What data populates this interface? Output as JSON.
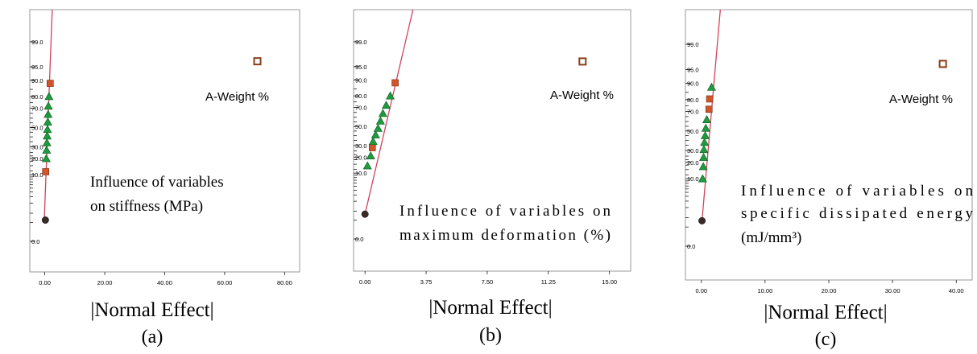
{
  "chart_data": [
    {
      "type": "scatter",
      "xlabel": "|Normal Effect|",
      "panel_label": "(a)",
      "annotation_lines": [
        "Influence of variables",
        "on stiffness (MPa)"
      ],
      "xlim": [
        -5,
        85
      ],
      "xticks": [
        "0.00",
        "20.00",
        "40.00",
        "60.00",
        "80.00"
      ],
      "yticks": [
        "0.0",
        "10.0",
        "20.0",
        "30.0",
        "50.0",
        "70.0",
        "80.0",
        "90.0",
        "95.0",
        "99.0"
      ],
      "point_label": "A-Weight %",
      "points": [
        {
          "x": 0.2,
          "p": 0.6,
          "marker": "circle"
        },
        {
          "x": 0.3,
          "p": 11.5,
          "marker": "square-red"
        },
        {
          "x": 0.5,
          "p": 20,
          "marker": "triangle"
        },
        {
          "x": 0.6,
          "p": 27,
          "marker": "triangle"
        },
        {
          "x": 0.7,
          "p": 34,
          "marker": "triangle"
        },
        {
          "x": 0.8,
          "p": 41,
          "marker": "triangle"
        },
        {
          "x": 0.9,
          "p": 48,
          "marker": "triangle"
        },
        {
          "x": 1.0,
          "p": 56,
          "marker": "triangle"
        },
        {
          "x": 1.1,
          "p": 64,
          "marker": "triangle"
        },
        {
          "x": 1.2,
          "p": 72,
          "marker": "triangle"
        },
        {
          "x": 1.4,
          "p": 80,
          "marker": "triangle"
        },
        {
          "x": 1.8,
          "p": 88.5,
          "marker": "square-red"
        },
        {
          "x": 70.9,
          "p": 96.4,
          "marker": "square-open"
        }
      ],
      "fit_line": {
        "x": [
          -0.2,
          2.8
        ],
        "p": [
          0.5,
          99.995
        ]
      }
    },
    {
      "type": "scatter",
      "xlabel": "|Normal Effect|",
      "panel_label": "(b)",
      "annotation_lines": [
        "Influence of variables on",
        "maximum deformation (%)"
      ],
      "xlim": [
        -0.7,
        16.3
      ],
      "xticks": [
        "0.00",
        "3.75",
        "7.50",
        "11.25",
        "15.00"
      ],
      "yticks": [
        "0.0",
        "10.0",
        "20.0",
        "30.0",
        "50.0",
        "70.0",
        "80.0",
        "90.0",
        "95.0",
        "99.0"
      ],
      "point_label": "A-Weight %",
      "points": [
        {
          "x": 0.0,
          "p": 0.8,
          "marker": "circle"
        },
        {
          "x": 0.15,
          "p": 14,
          "marker": "triangle"
        },
        {
          "x": 0.35,
          "p": 21,
          "marker": "triangle"
        },
        {
          "x": 0.45,
          "p": 28,
          "marker": "square-red"
        },
        {
          "x": 0.5,
          "p": 34,
          "marker": "triangle"
        },
        {
          "x": 0.65,
          "p": 41,
          "marker": "triangle"
        },
        {
          "x": 0.8,
          "p": 48,
          "marker": "triangle"
        },
        {
          "x": 0.95,
          "p": 56,
          "marker": "triangle"
        },
        {
          "x": 1.1,
          "p": 64,
          "marker": "triangle"
        },
        {
          "x": 1.3,
          "p": 72,
          "marker": "triangle"
        },
        {
          "x": 1.55,
          "p": 80,
          "marker": "triangle"
        },
        {
          "x": 1.85,
          "p": 88.5,
          "marker": "square-red"
        },
        {
          "x": 13.35,
          "p": 96.3,
          "marker": "square-open"
        }
      ],
      "fit_line": {
        "x": [
          0.0,
          3.3
        ],
        "p": [
          0.8,
          99.995
        ]
      }
    },
    {
      "type": "scatter",
      "xlabel": "|Normal Effect|",
      "panel_label": "(c)",
      "annotation_lines": [
        "Influence of variables on",
        "specific dissipated energy",
        "(mJ/mm³)"
      ],
      "xlim": [
        -2.5,
        42.5
      ],
      "xticks": [
        "0.00",
        "10.00",
        "20.00",
        "30.00",
        "40.00"
      ],
      "yticks": [
        "0.0",
        "10.0",
        "20.0",
        "30.0",
        "50.0",
        "70.0",
        "80.0",
        "90.0",
        "95.0",
        "99.0"
      ],
      "point_label": "A-Weight %",
      "points": [
        {
          "x": 0.1,
          "p": 0.8,
          "marker": "circle"
        },
        {
          "x": 0.2,
          "p": 10,
          "marker": "triangle"
        },
        {
          "x": 0.3,
          "p": 17,
          "marker": "triangle"
        },
        {
          "x": 0.35,
          "p": 24,
          "marker": "triangle"
        },
        {
          "x": 0.4,
          "p": 31,
          "marker": "triangle"
        },
        {
          "x": 0.5,
          "p": 38,
          "marker": "triangle"
        },
        {
          "x": 0.6,
          "p": 45,
          "marker": "triangle"
        },
        {
          "x": 0.7,
          "p": 53,
          "marker": "triangle"
        },
        {
          "x": 0.85,
          "p": 62,
          "marker": "triangle"
        },
        {
          "x": 1.2,
          "p": 72,
          "marker": "square-red"
        },
        {
          "x": 1.3,
          "p": 80.5,
          "marker": "square-red"
        },
        {
          "x": 1.6,
          "p": 88,
          "marker": "triangle"
        },
        {
          "x": 37.9,
          "p": 96.4,
          "marker": "square-open"
        }
      ],
      "fit_line": {
        "x": [
          0.1,
          3.3
        ],
        "p": [
          0.8,
          99.995
        ]
      }
    }
  ]
}
